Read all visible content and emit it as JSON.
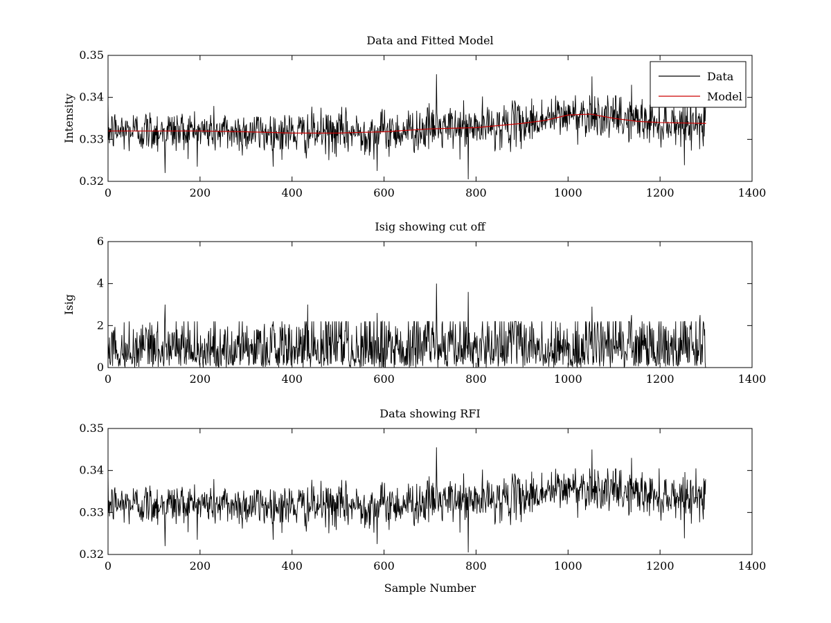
{
  "chart_data": [
    {
      "type": "line",
      "title": "Data and Fitted Model",
      "xlabel": "",
      "ylabel": "Intensity",
      "xlim": [
        0,
        1400
      ],
      "ylim": [
        0.32,
        0.35
      ],
      "xticks": [
        "0",
        "200",
        "400",
        "600",
        "800",
        "1000",
        "1200",
        "1400"
      ],
      "yticks": [
        "0.32",
        "0.33",
        "0.34",
        "0.35"
      ],
      "grid": false,
      "legend": "top-right",
      "n_samples": 1300,
      "series": [
        {
          "name": "Data",
          "color": "#000000",
          "trend_x": [
            0,
            200,
            400,
            500,
            600,
            700,
            800,
            900,
            1000,
            1050,
            1100,
            1200,
            1300
          ],
          "trend_y": [
            0.332,
            0.332,
            0.3315,
            0.3315,
            0.3318,
            0.3325,
            0.3328,
            0.3338,
            0.3358,
            0.336,
            0.335,
            0.334,
            0.3338
          ],
          "spikes": [
            [
              714,
              0.3455
            ],
            [
              783,
              0.3205
            ],
            [
              1052,
              0.345
            ],
            [
              124,
              0.322
            ],
            [
              585,
              0.3225
            ],
            [
              1138,
              0.343
            ]
          ]
        },
        {
          "name": "Model",
          "color": "#cc0000",
          "x": [
            0,
            200,
            300,
            400,
            500,
            600,
            700,
            800,
            900,
            950,
            1000,
            1050,
            1100,
            1150,
            1200,
            1300
          ],
          "y": [
            0.332,
            0.332,
            0.3318,
            0.3315,
            0.3315,
            0.3318,
            0.3325,
            0.3328,
            0.3338,
            0.3345,
            0.3358,
            0.336,
            0.335,
            0.3343,
            0.334,
            0.3338
          ]
        }
      ]
    },
    {
      "type": "line",
      "title": "Isig showing cut off",
      "xlabel": "",
      "ylabel": "Isig",
      "xlim": [
        0,
        1400
      ],
      "ylim": [
        0,
        6
      ],
      "xticks": [
        "0",
        "200",
        "400",
        "600",
        "800",
        "1000",
        "1200",
        "1400"
      ],
      "yticks": [
        "0",
        "2",
        "4",
        "6"
      ],
      "grid": false,
      "n_samples": 1300,
      "series": [
        {
          "color": "#000000",
          "spikes": [
            [
              714,
              4.0
            ],
            [
              783,
              3.6
            ],
            [
              124,
              3.0
            ],
            [
              434,
              3.0
            ],
            [
              1052,
              2.9
            ],
            [
              585,
              2.6
            ],
            [
              1138,
              2.5
            ],
            [
              1287,
              2.5
            ]
          ]
        }
      ]
    },
    {
      "type": "line",
      "title": "Data showing RFI",
      "xlabel": "Sample Number",
      "ylabel": "",
      "xlim": [
        0,
        1400
      ],
      "ylim": [
        0.32,
        0.35
      ],
      "xticks": [
        "0",
        "200",
        "400",
        "600",
        "800",
        "1000",
        "1200",
        "1400"
      ],
      "yticks": [
        "0.32",
        "0.33",
        "0.34",
        "0.35"
      ],
      "grid": false,
      "n_samples": 1300,
      "series": [
        {
          "color": "#000000",
          "trend_x": [
            0,
            200,
            400,
            500,
            600,
            700,
            800,
            900,
            1000,
            1050,
            1100,
            1200,
            1300
          ],
          "trend_y": [
            0.332,
            0.332,
            0.3315,
            0.3315,
            0.3318,
            0.3325,
            0.3328,
            0.3338,
            0.3358,
            0.336,
            0.335,
            0.334,
            0.3338
          ],
          "spikes": [
            [
              714,
              0.3455
            ],
            [
              783,
              0.3205
            ],
            [
              1052,
              0.345
            ],
            [
              124,
              0.322
            ],
            [
              585,
              0.3225
            ],
            [
              1138,
              0.343
            ]
          ]
        }
      ]
    }
  ]
}
